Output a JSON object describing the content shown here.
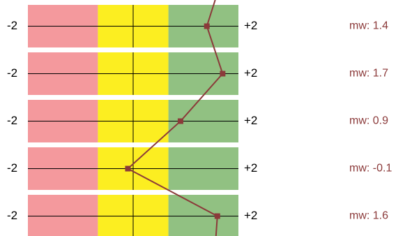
{
  "colors": {
    "negative_zone": "#f4999d",
    "neutral_zone": "#fcee21",
    "positive_zone": "#91c182",
    "line": "#8b3a3a",
    "mean_text": "#8b3a3a",
    "axis": "#000000"
  },
  "chart_data": {
    "type": "line",
    "orientation": "horizontal-strips",
    "xlim": [
      -2,
      2
    ],
    "zones": [
      {
        "from": -2,
        "to": -0.67
      },
      {
        "from": -0.67,
        "to": 0.67
      },
      {
        "from": 0.67,
        "to": 2
      }
    ],
    "left_tick_label": "-2",
    "right_tick_label": "+2",
    "rows": [
      {
        "value": 1.4,
        "label": "mw: 1.4"
      },
      {
        "value": 1.7,
        "label": "mw: 1.7"
      },
      {
        "value": 0.9,
        "label": "mw: 0.9"
      },
      {
        "value": -0.1,
        "label": "mw: -0.1"
      },
      {
        "value": 1.6,
        "label": "mw: 1.6"
      }
    ],
    "line_continues_above_first_row": true,
    "line_continues_below_last_row": true
  }
}
